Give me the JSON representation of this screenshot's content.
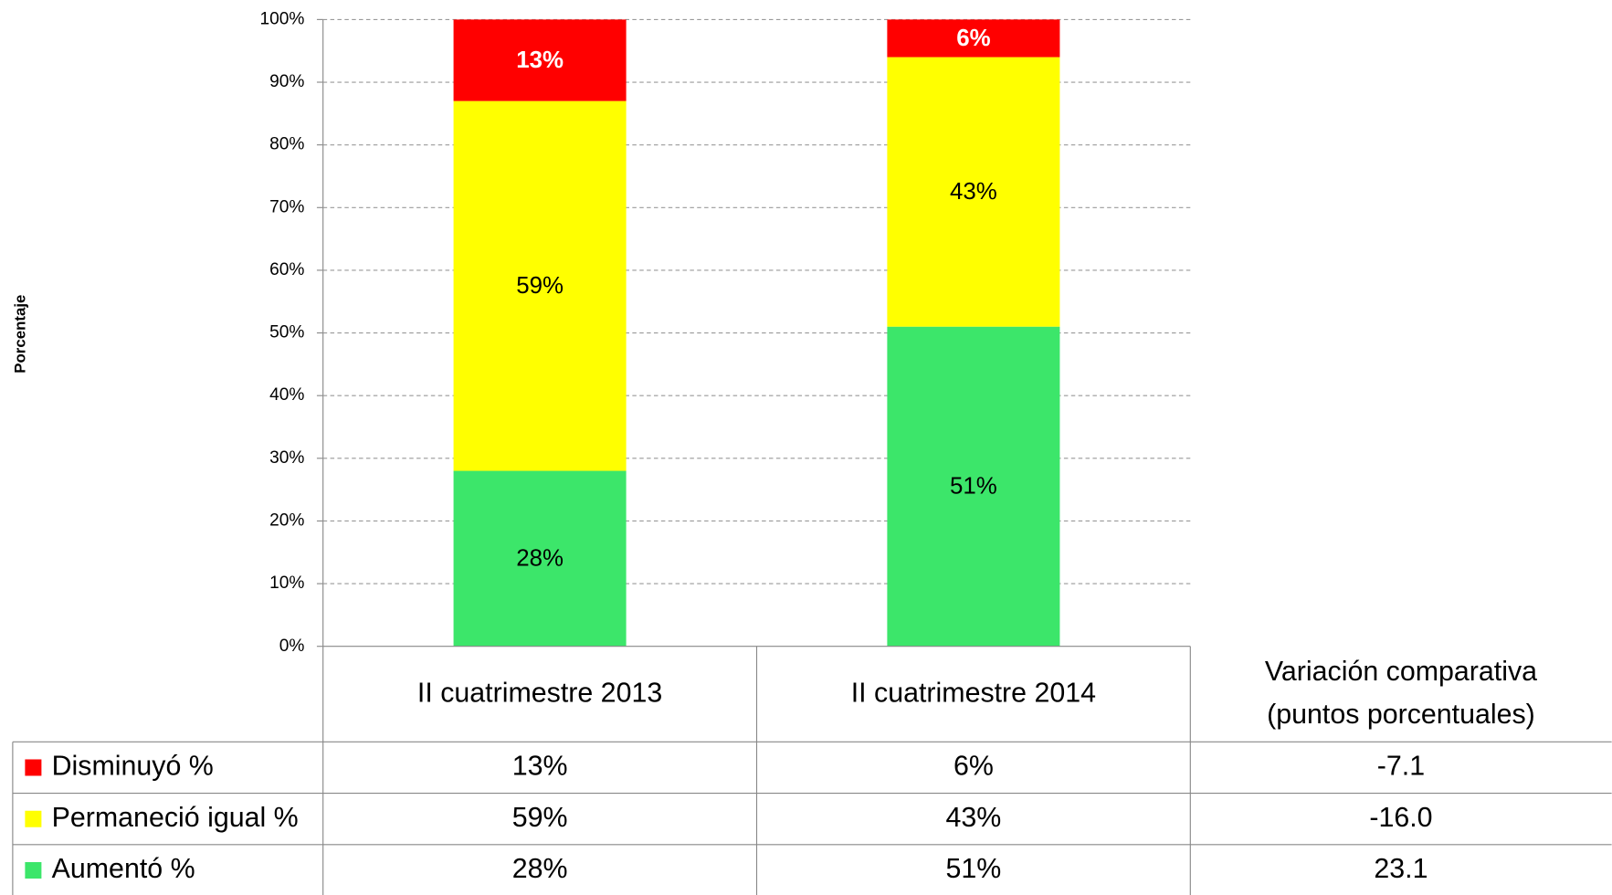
{
  "chart_data": {
    "type": "stacked_bar",
    "y_label": "Porcentaje",
    "categories": [
      "II cuatrimestre 2013",
      "II cuatrimestre 2014"
    ],
    "series": [
      {
        "name": "Disminuyó %",
        "color": "#ff0000",
        "values": [
          13,
          6
        ],
        "value_labels": [
          "13%",
          "6%"
        ]
      },
      {
        "name": "Permaneció igual %",
        "color": "#ffff00",
        "values": [
          59,
          43
        ],
        "value_labels": [
          "59%",
          "43%"
        ]
      },
      {
        "name": "Aumentó %",
        "color": "#3ce66a",
        "values": [
          28,
          51
        ],
        "value_labels": [
          "28%",
          "51%"
        ]
      }
    ],
    "change_header": [
      "Variación comparativa",
      "(puntos porcentuales)"
    ],
    "changes": [
      -7.1,
      -16,
      23.1
    ],
    "change_labels": [
      "-7.1",
      "-16.0",
      "23.1"
    ],
    "ylim": [
      0,
      100
    ],
    "yticks": [
      {
        "value": 0,
        "label": "0%"
      },
      {
        "value": 10,
        "label": "10%"
      },
      {
        "value": 20,
        "label": "20%"
      },
      {
        "value": 30,
        "label": "30%"
      },
      {
        "value": 40,
        "label": "40%"
      },
      {
        "value": 50,
        "label": "50%"
      },
      {
        "value": 60,
        "label": "60%"
      },
      {
        "value": 70,
        "label": "70%"
      },
      {
        "value": 80,
        "label": "80%"
      },
      {
        "value": 90,
        "label": "90%"
      },
      {
        "value": 100,
        "label": "100%"
      }
    ],
    "grid": true
  }
}
